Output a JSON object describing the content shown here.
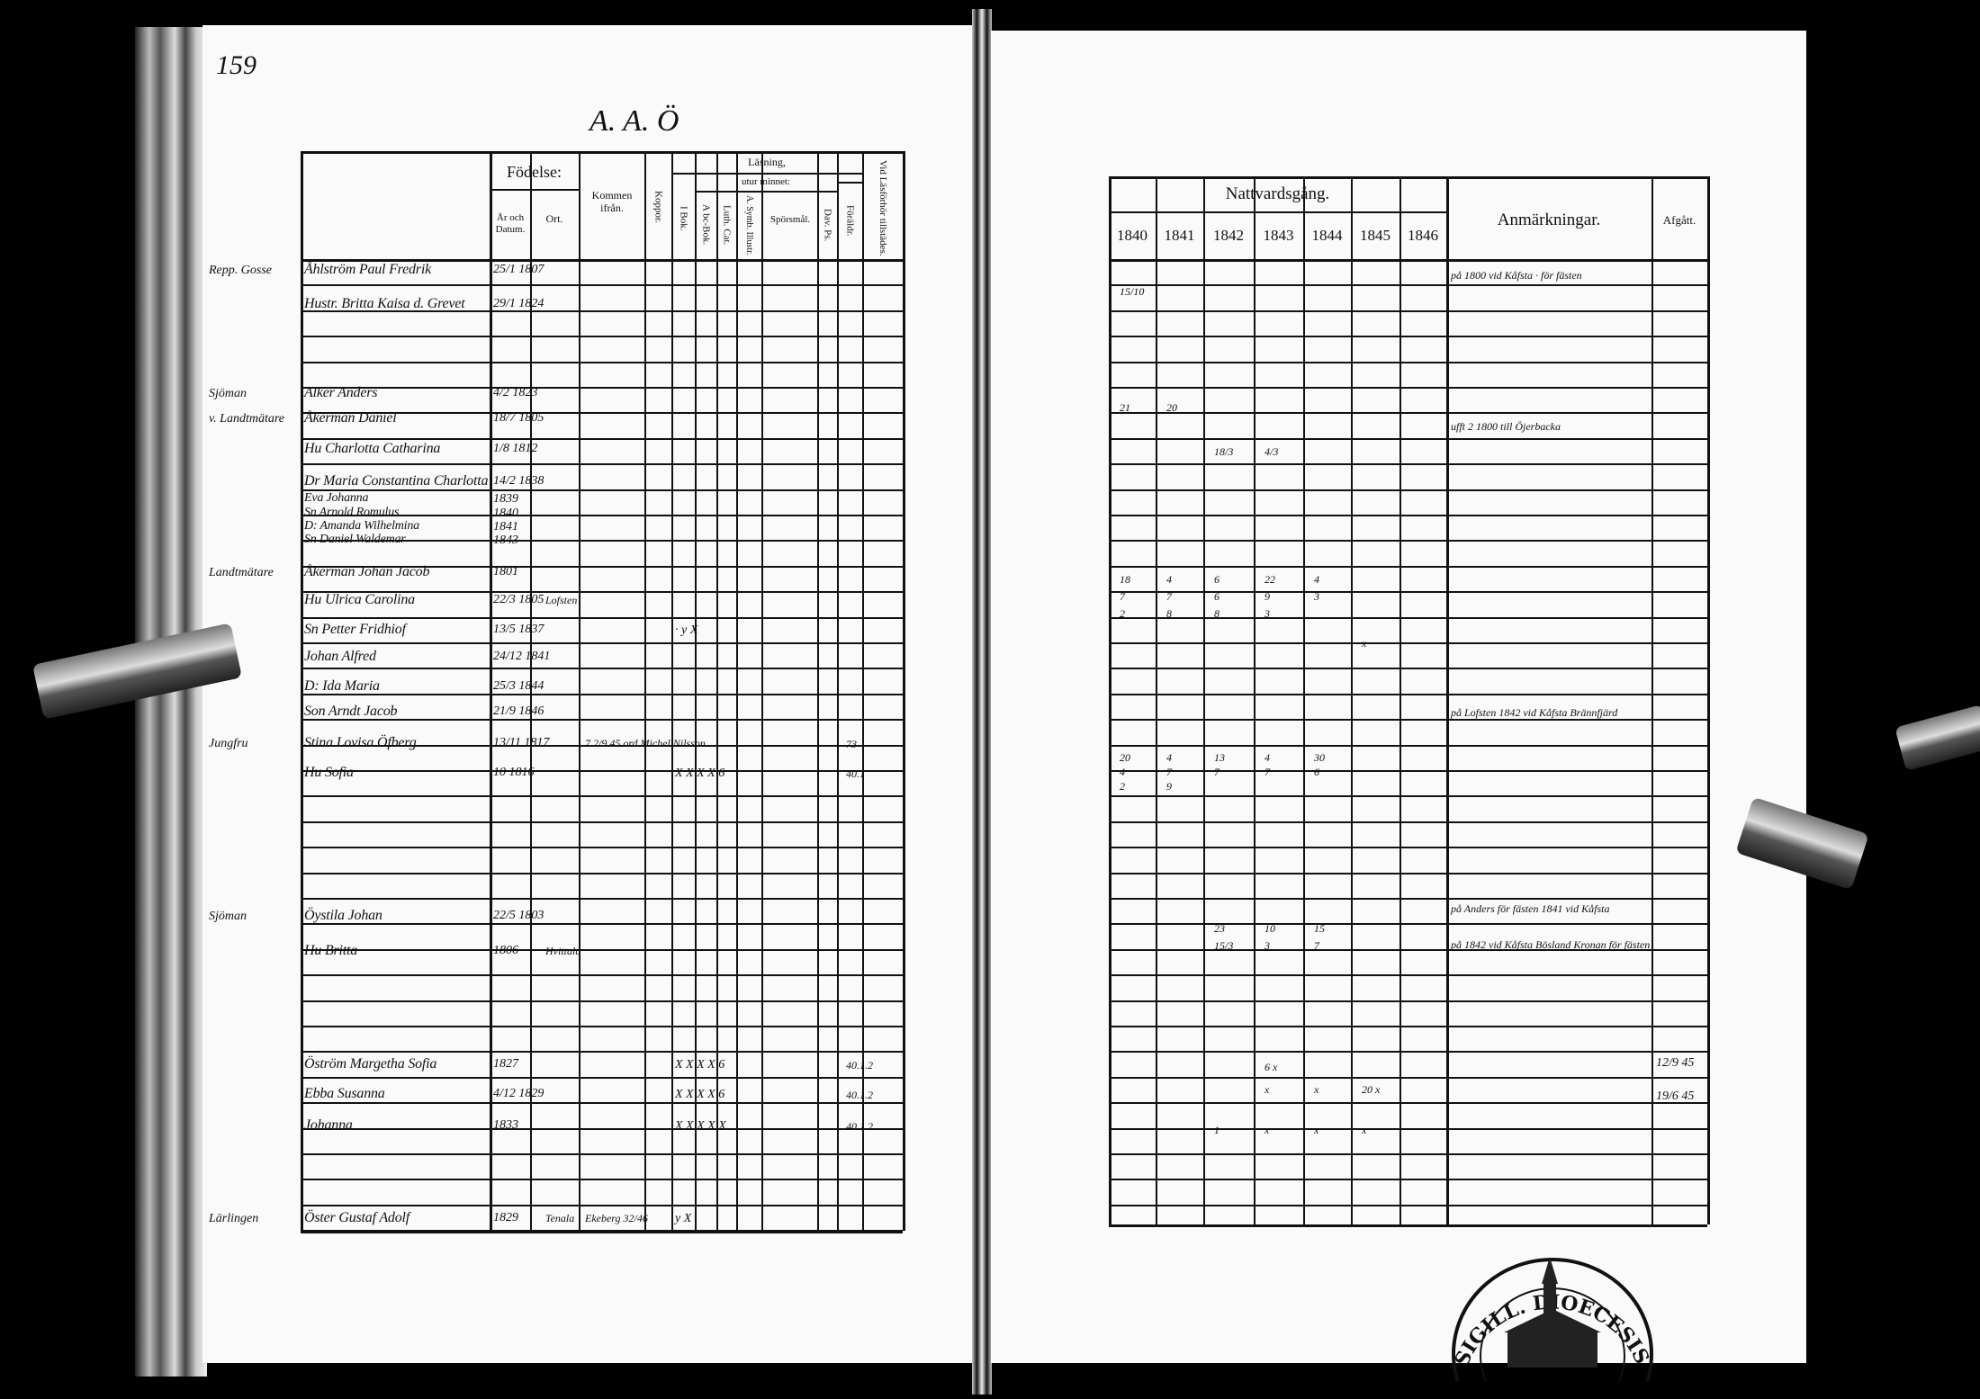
{
  "left_page": {
    "page_number": "159",
    "heading": "A. A. Ö",
    "headers": {
      "fodelse": "Födelse:",
      "ar_datum": "År och Datum.",
      "ort": "Ort.",
      "kommen": "Kommen ifrån.",
      "koppor": "Koppor.",
      "lasning": "Läsning,",
      "utur_minnet": "utur minnet:",
      "i_bok": "I Bok.",
      "abc_bok": "A bc-Bok.",
      "luth_cat": "Luth. Cat.",
      "symb": "A. Symb. Illustr.",
      "sporsmal": "Spörsmål.",
      "dav_ps": "Dav. Ps.",
      "foraldr": "Föräldr.",
      "vid_lasforhor": "Vid Läsförhör tillstädes."
    },
    "entries": [
      {
        "margin": "Repp. Gosse",
        "name": "Åhlström Paul Fredrik",
        "date": "25/1 1807"
      },
      {
        "name": "Hustr. Britta Kaisa d. Grevet",
        "date": "29/1 1824"
      },
      {
        "margin": "Sjöman",
        "name": "Alker Anders",
        "date": "4/2 1823"
      },
      {
        "margin": "v. Landtmätare",
        "name": "Åkerman Daniel",
        "date": "18/7 1805"
      },
      {
        "name": "Hu Charlotta Catharina",
        "date": "1/8 1812"
      },
      {
        "name": "Dr Maria Constantina Charlotta",
        "date": "14/2 1838"
      },
      {
        "name": "Eva Johanna",
        "date": "1839"
      },
      {
        "name": "Sn Arnold Romulus",
        "date": "1840"
      },
      {
        "name": "D: Amanda Wilhelmina",
        "date": "1841"
      },
      {
        "name": "Sn Daniel Waldemar",
        "date": "1843"
      },
      {
        "margin": "Landtmätare",
        "name": "Åkerman Johan Jacob",
        "date": "1801"
      },
      {
        "name": "Hu Ulrica Carolina",
        "date": "22/3 1805",
        "place": "Lofsten"
      },
      {
        "name": "Sn Petter Fridhiof",
        "date": "13/5 1837",
        "marks": "·  y  X"
      },
      {
        "name": "Johan Alfred",
        "date": "24/12 1841"
      },
      {
        "name": "D: Ida Maria",
        "date": "25/3 1844"
      },
      {
        "name": "Son Arndt Jacob",
        "date": "21/9 1846"
      },
      {
        "margin": "Jungfru",
        "name": "Stina Lovisa Öfberg",
        "date": "13/11 1817",
        "from": "7 2/9 45 ord Michel Nilsson",
        "present": "73"
      },
      {
        "name": "Hu Sofia",
        "date": "10 1816",
        "marks": "X  X  X  X  6",
        "present": "40.1"
      },
      {
        "margin": "Sjöman",
        "name": "Öystila Johan",
        "date": "22/5 1803"
      },
      {
        "name": "Hu Britta",
        "date": "1806",
        "place": "Hvittala"
      },
      {
        "name": "Öström Margetha Sofia",
        "date": "1827",
        "marks": "X  X  X  X  6",
        "present": "40.1.2"
      },
      {
        "name": "Ebba Susanna",
        "date": "4/12 1829",
        "marks": "X  X  X  X  6",
        "present": "40.1.2"
      },
      {
        "name": "Johanna",
        "date": "1833",
        "marks": "X  X  X  X  X",
        "present": "40.1.2"
      },
      {
        "margin": "Lärlingen",
        "name": "Öster Gustaf Adolf",
        "date": "1829",
        "place": "Tenala",
        "from": "Ekeberg 32/46",
        "marks": "y  X"
      }
    ]
  },
  "right_page": {
    "headers": {
      "nattvardsgang": "Nattvardsgång.",
      "years": [
        "1840",
        "1841",
        "1842",
        "1843",
        "1844",
        "1845",
        "1846"
      ],
      "anmarkningar": "Anmärkningar.",
      "afgatt": "Afgått."
    },
    "communion_marks": [
      {
        "cols": [
          "15/10",
          "",
          "",
          "",
          "",
          "",
          ""
        ]
      },
      {
        "cols": [
          "21",
          "20",
          "",
          "",
          "",
          "",
          ""
        ]
      },
      {
        "cols": [
          "",
          "",
          "18/3",
          "4/3",
          "",
          "",
          ""
        ]
      },
      {
        "cols": [
          "18",
          "4",
          "6",
          "22",
          "4",
          "",
          ""
        ]
      },
      {
        "cols": [
          "7",
          "7",
          "6",
          "9",
          "3",
          "",
          ""
        ]
      },
      {
        "cols": [
          "2",
          "8",
          "8",
          "3",
          "",
          "",
          ""
        ]
      },
      {
        "cols": [
          "",
          "",
          "",
          "",
          "",
          "x",
          ""
        ]
      },
      {
        "cols": [
          "20",
          "4",
          "13",
          "4",
          "30",
          "",
          ""
        ]
      },
      {
        "cols": [
          "4",
          "7",
          "7",
          "7",
          "6",
          "",
          ""
        ]
      },
      {
        "cols": [
          "2",
          "9",
          "",
          "",
          "",
          "",
          ""
        ]
      },
      {
        "cols": [
          "",
          "",
          "23",
          "10",
          "15",
          "",
          ""
        ]
      },
      {
        "cols": [
          "",
          "",
          "15/3",
          "3",
          "7",
          "",
          ""
        ]
      },
      {
        "cols": [
          "",
          "",
          "",
          "6 x",
          "",
          "",
          ""
        ]
      },
      {
        "cols": [
          "",
          "",
          "",
          "x",
          "x",
          "20 x",
          ""
        ]
      },
      {
        "cols": [
          "",
          "",
          "1",
          "x",
          "x",
          "x",
          ""
        ]
      }
    ],
    "remarks": [
      "på 1800 vid Kåfsta · för fästen",
      "ufft 2 1800 till Öjerbacka",
      "på Lofsten 1842 vid Kåfsta Brännfjärd",
      "på Anders för fästen 1841 vid Kåfsta",
      "på 1842 vid Kåfsta Bösland Kronan för fästen"
    ],
    "departed": [
      "12/9 45",
      "19/6 45"
    ]
  },
  "stamp": {
    "text": "SIGILL. DIOECESIS ABOENSIS"
  }
}
